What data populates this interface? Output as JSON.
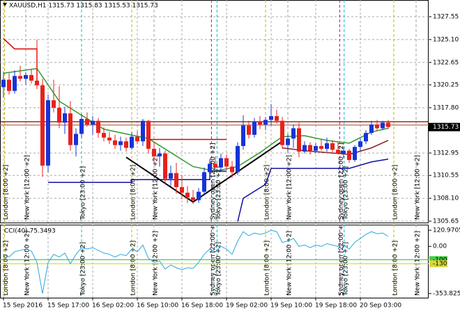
{
  "chart_data": {
    "type": "candlestick",
    "title": "XAUUSD,H1  1315.73 1315.83 1315.53 1315.73",
    "open": [
      1320.0,
      1320.8,
      1319.6,
      1321.2,
      1320.9,
      1321.3,
      1320.7,
      1320.2,
      1311.6,
      1318.6,
      1317.8,
      1316.2,
      1317.2,
      1313.8,
      1315.0,
      1316.6,
      1316.0,
      1316.4,
      1315.1,
      1314.6,
      1314.3,
      1313.8,
      1314.2,
      1313.5,
      1314.7,
      1314.2,
      1316.4,
      1313.4,
      1312.6,
      1312.9,
      1310.2,
      1310.8,
      1309.3,
      1308.7,
      1308.2,
      1307.9,
      1308.8,
      1310.9,
      1311.8,
      1311.4,
      1312.4,
      1311.5,
      1310.9,
      1313.7,
      1315.9,
      1314.9,
      1316.3,
      1316.0,
      1316.5,
      1316.9,
      1316.4,
      1313.8,
      1314.5,
      1315.6,
      1313.1,
      1313.8,
      1313.2,
      1313.7,
      1313.4,
      1314.0,
      1313.3,
      1312.9,
      1313.2,
      1312.2,
      1313.6,
      1314.2,
      1315.1,
      1316.0,
      1315.6,
      1316.2
    ],
    "high": [
      1321.6,
      1321.5,
      1321.8,
      1322.3,
      1321.6,
      1321.9,
      1325.1,
      1320.9,
      1319.2,
      1320.8,
      1320.1,
      1317.9,
      1318.5,
      1315.6,
      1317.1,
      1317.3,
      1316.9,
      1316.7,
      1315.7,
      1315.2,
      1314.9,
      1314.7,
      1314.6,
      1315.2,
      1315.3,
      1316.6,
      1316.5,
      1314.1,
      1313.5,
      1313.2,
      1311.6,
      1311.9,
      1310.6,
      1309.4,
      1309.0,
      1309.2,
      1311.4,
      1312.3,
      1312.6,
      1312.9,
      1312.8,
      1312.1,
      1314.1,
      1317.0,
      1316.4,
      1316.7,
      1316.9,
      1316.8,
      1318.2,
      1317.6,
      1316.8,
      1315.0,
      1316.0,
      1316.2,
      1314.2,
      1314.1,
      1314.0,
      1314.4,
      1314.6,
      1314.3,
      1314.1,
      1313.6,
      1313.4,
      1313.8,
      1314.5,
      1315.4,
      1316.4,
      1316.5,
      1316.4,
      1316.5
    ],
    "low": [
      1318.9,
      1319.2,
      1319.3,
      1320.6,
      1320.3,
      1320.4,
      1319.8,
      1310.4,
      1310.9,
      1317.3,
      1315.6,
      1315.0,
      1313.2,
      1312.6,
      1314.6,
      1315.8,
      1314.9,
      1314.6,
      1314.2,
      1313.9,
      1313.4,
      1313.2,
      1313.1,
      1313.3,
      1313.9,
      1313.7,
      1312.9,
      1311.8,
      1311.5,
      1309.6,
      1309.4,
      1308.6,
      1308.0,
      1307.6,
      1307.5,
      1307.6,
      1308.4,
      1310.2,
      1310.9,
      1311.0,
      1311.1,
      1310.3,
      1310.6,
      1313.3,
      1314.5,
      1314.6,
      1315.5,
      1315.4,
      1315.9,
      1316.1,
      1313.4,
      1313.0,
      1313.5,
      1312.5,
      1312.9,
      1312.8,
      1312.9,
      1313.2,
      1313.1,
      1313.0,
      1312.8,
      1312.4,
      1311.9,
      1312.0,
      1313.2,
      1313.9,
      1314.9,
      1315.3,
      1315.4,
      1315.5
    ],
    "close": [
      1320.8,
      1319.6,
      1321.2,
      1320.9,
      1321.3,
      1320.7,
      1320.2,
      1311.6,
      1318.6,
      1317.8,
      1316.2,
      1317.2,
      1313.8,
      1315.0,
      1316.6,
      1316.0,
      1316.4,
      1315.1,
      1314.6,
      1314.3,
      1313.8,
      1314.2,
      1313.5,
      1314.7,
      1314.2,
      1316.4,
      1313.4,
      1312.6,
      1312.9,
      1310.2,
      1310.8,
      1309.3,
      1308.7,
      1308.2,
      1307.9,
      1308.8,
      1310.9,
      1311.8,
      1311.4,
      1312.4,
      1311.5,
      1310.9,
      1313.7,
      1315.9,
      1314.9,
      1316.3,
      1316.0,
      1316.5,
      1316.9,
      1316.4,
      1313.8,
      1314.5,
      1315.6,
      1313.1,
      1313.8,
      1313.2,
      1313.7,
      1313.4,
      1314.0,
      1313.3,
      1312.9,
      1313.2,
      1312.2,
      1313.6,
      1314.2,
      1315.1,
      1316.0,
      1315.6,
      1316.2,
      1315.73
    ],
    "up_color": "#1634d8",
    "down_color": "#e8211b",
    "ylim": [
      1305.5,
      1329.04
    ],
    "yticks": [
      1327.55,
      {
        "value": 1325.1,
        "label": "1325.10"
      },
      1322.65,
      1320.25,
      {
        "value": 1317.8,
        "label": "1317.80"
      },
      1312.95,
      1310.55,
      {
        "value": 1308.1,
        "label": "1308.10"
      },
      1305.65
    ],
    "last_price": 1315.73,
    "xticks": [
      {
        "value": 0,
        "label": "15 Sep 2016"
      },
      {
        "value": 8,
        "label": "15 Sep 17:00"
      },
      {
        "value": 16,
        "label": "16 Sep 02:00"
      },
      {
        "value": 24,
        "label": "16 Sep 10:00"
      },
      {
        "value": 32,
        "label": "16 Sep 18:00"
      },
      {
        "value": 40,
        "label": "19 Sep 02:00"
      },
      {
        "value": 48,
        "label": "19 Sep 10:00"
      },
      {
        "value": 56,
        "label": "19 Sep 18:00"
      },
      {
        "value": 64,
        "label": "20 Sep 03:00"
      }
    ],
    "grid": true,
    "hlines": [
      {
        "value": 1316.3,
        "color": "#7a0000"
      },
      {
        "value": 1315.95,
        "color": "#b07050"
      }
    ],
    "lines": [
      {
        "color": "#2e9a2e",
        "x": [
          0,
          6,
          10,
          14,
          18,
          22,
          26,
          30,
          34,
          38,
          42,
          46,
          50,
          54,
          58,
          62,
          66,
          69
        ],
        "values": [
          1321.5,
          1322.0,
          1318.5,
          1317.0,
          1315.5,
          1315.0,
          1314.5,
          1313.0,
          1311.5,
          1311.0,
          1311.5,
          1313.0,
          1314.7,
          1314.8,
          1314.3,
          1314.0,
          1315.2,
          1315.6
        ]
      },
      {
        "color": "#8b2020",
        "x": [
          50,
          54,
          58,
          62,
          66,
          69
        ],
        "values": [
          1313.5,
          1313.2,
          1313.0,
          1312.8,
          1313.5,
          1314.3
        ]
      },
      {
        "color": "#e00000",
        "x": [
          0,
          2,
          6,
          6
        ],
        "values": [
          1325.2,
          1324.1,
          1324.1,
          1320.5
        ]
      },
      {
        "color": "#e00000",
        "x": [
          26,
          40
        ],
        "values": [
          1314.4,
          1314.4
        ]
      },
      {
        "color": "#1010a0",
        "x": [
          8,
          23,
          23,
          37,
          37,
          40
        ],
        "values": [
          1309.8,
          1309.8,
          1310.1,
          1310.1,
          1311.0,
          1311.0
        ]
      },
      {
        "color": "#1010a0",
        "x": [
          42,
          43,
          47,
          48,
          62,
          66,
          69
        ],
        "values": [
          1305.6,
          1308.1,
          1309.6,
          1311.3,
          1311.3,
          1312.0,
          1312.3
        ]
      },
      {
        "color": "#000000",
        "x": [
          22,
          34
        ],
        "values": [
          1312.5,
          1307.7
        ]
      },
      {
        "color": "#000000",
        "x": [
          34,
          50
        ],
        "values": [
          1307.7,
          1314.2
        ]
      }
    ],
    "sessions": [
      {
        "label": "London [8:00 +2]",
        "x": 0.2,
        "color": "#c8b400"
      },
      {
        "label": "New York [12:00 +2]",
        "x": 4,
        "color": "#a0a0a0"
      },
      {
        "label": "Tokyo [23:00 +2]",
        "x": 14,
        "color": "#00c0c0"
      },
      {
        "label": "London [8:00 +2]",
        "x": 23,
        "color": "#c8b400"
      },
      {
        "label": "New York [12:00 +2]",
        "x": 27,
        "color": "#a0a0a0"
      },
      {
        "label": "Sydney open [22:00 +2]",
        "x": 37.3,
        "color": "#c000c0"
      },
      {
        "label": "Tokyo [23:00 +2]",
        "x": 38.3,
        "color": "#00c0c0"
      },
      {
        "label": "London [8:00 +2]",
        "x": 47,
        "color": "#c8b400"
      },
      {
        "label": "New York [12:00 +2]",
        "x": 51,
        "color": "#a0a0a0"
      },
      {
        "label": "Sydney open [22:00 +2]",
        "x": 60.3,
        "color": "#c000c0"
      },
      {
        "label": "Tokyo [23:00 +2]",
        "x": 61.1,
        "color": "#00c0c0"
      },
      {
        "label": "London [8:00 +2]",
        "x": 70,
        "color": "#c8b400"
      },
      {
        "label": "New York [12:00 +2]",
        "x": 74,
        "color": "#a0a0a0"
      }
    ],
    "indicator": {
      "type": "line",
      "title": "CCI(40) 75.3493",
      "color": "#2aa8e0",
      "values": [
        -60,
        -80,
        -40,
        -30,
        -20,
        -35,
        -120,
        -353.8257,
        -120,
        -60,
        -80,
        -50,
        -130,
        -60,
        -10,
        -20,
        -10,
        -30,
        -50,
        -60,
        -80,
        -60,
        -70,
        -20,
        -40,
        10,
        -90,
        -120,
        -110,
        -170,
        -140,
        -160,
        -175,
        -160,
        -165,
        -120,
        -60,
        -20,
        -40,
        0,
        -20,
        -60,
        40,
        110,
        80,
        100,
        90,
        100,
        120.9705,
        110,
        30,
        40,
        60,
        0,
        10,
        -10,
        10,
        0,
        20,
        10,
        0,
        10,
        -20,
        30,
        60,
        90,
        110,
        95,
        100,
        75.3493
      ],
      "ylim": [
        -385.1,
        162.7
      ],
      "yticks": [
        120.9705,
        {
          "value": 0,
          "label": "0.00"
        },
        -353.8257
      ],
      "levels": [
        {
          "value": -100,
          "color": "#40d040"
        },
        {
          "value": -130,
          "color": "#d8d840"
        }
      ]
    }
  }
}
